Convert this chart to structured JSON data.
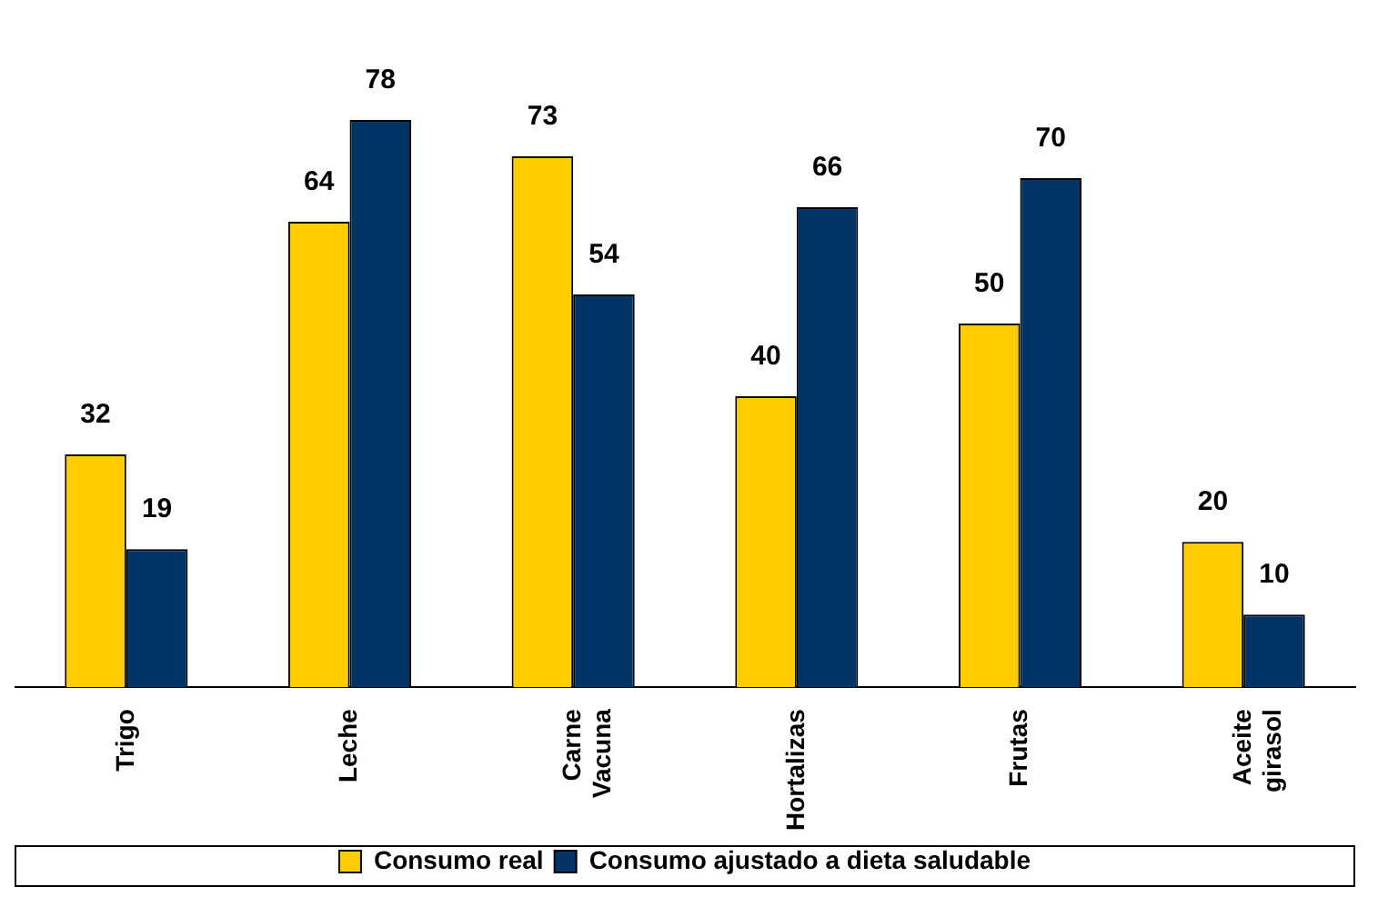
{
  "chart_data": {
    "type": "bar",
    "categories": [
      "Trigo",
      "Leche",
      "Carne Vacuna",
      "Hortalizas",
      "Frutas",
      "Aceite girasol"
    ],
    "series": [
      {
        "name": "Consumo real",
        "color": "#ffcc00",
        "values": [
          32,
          64,
          73,
          40,
          50,
          20
        ]
      },
      {
        "name": "Consumo ajustado a dieta saludable",
        "color": "#003366",
        "values": [
          19,
          78,
          54,
          66,
          70,
          10
        ]
      }
    ],
    "data_labels": true,
    "legend": "bottom",
    "grid": false
  }
}
